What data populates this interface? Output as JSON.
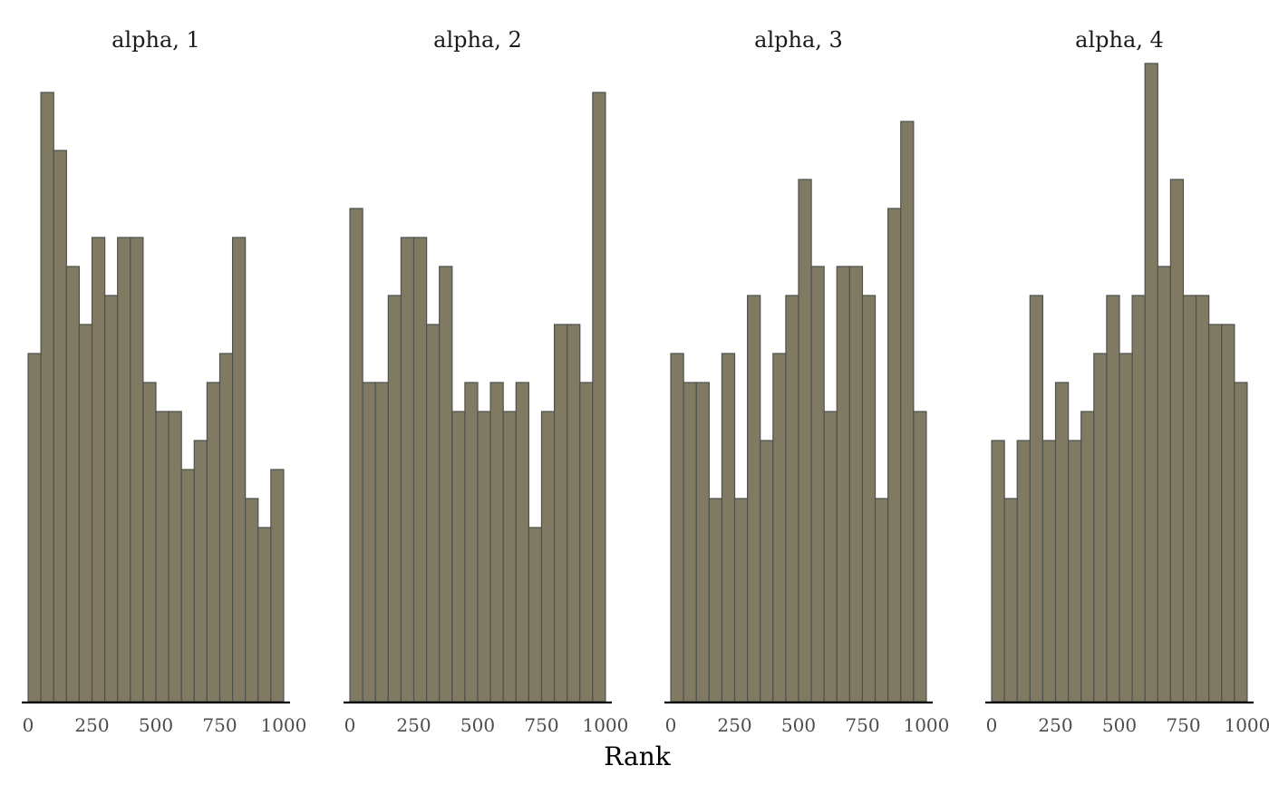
{
  "colors": {
    "bar_fill": "#817a63",
    "bar_stroke": "#4f4f4f"
  },
  "chart_data": {
    "type": "bar",
    "xlabel": "Rank",
    "ylabel": "",
    "xlim": [
      -25,
      1025
    ],
    "ylim": [
      0,
      22
    ],
    "bin_width": 50,
    "x_ticks": [
      0,
      250,
      500,
      750,
      1000
    ],
    "grid": false,
    "bins": [
      0,
      50,
      100,
      150,
      200,
      250,
      300,
      350,
      400,
      450,
      500,
      550,
      600,
      650,
      700,
      750,
      800,
      850,
      900,
      950,
      1000
    ],
    "panels": [
      {
        "title": "alpha, 1",
        "values": [
          12,
          21,
          19,
          15,
          13,
          16,
          14,
          16,
          16,
          11,
          10,
          10,
          8,
          9,
          11,
          12,
          16,
          7,
          6,
          8
        ]
      },
      {
        "title": "alpha, 2",
        "values": [
          17,
          11,
          11,
          14,
          16,
          16,
          13,
          15,
          10,
          11,
          10,
          11,
          10,
          11,
          6,
          10,
          13,
          13,
          11,
          21
        ]
      },
      {
        "title": "alpha, 3",
        "values": [
          12,
          11,
          11,
          7,
          12,
          7,
          14,
          9,
          12,
          14,
          18,
          15,
          10,
          15,
          15,
          14,
          7,
          17,
          20,
          10
        ]
      },
      {
        "title": "alpha, 4",
        "values": [
          9,
          7,
          9,
          14,
          9,
          11,
          9,
          10,
          12,
          14,
          12,
          14,
          22,
          15,
          18,
          14,
          14,
          13,
          13,
          11
        ]
      }
    ]
  }
}
